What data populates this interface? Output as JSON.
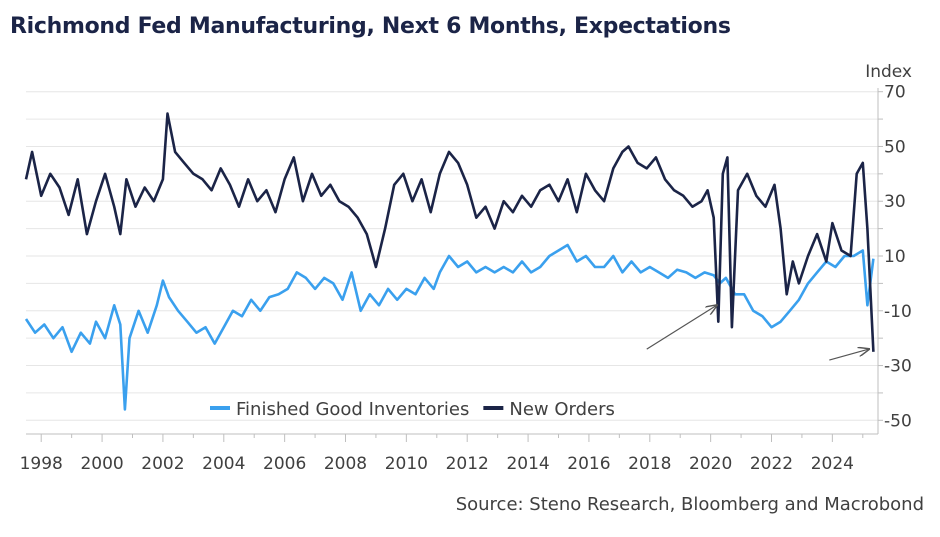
{
  "title": "Richmond Fed Manufacturing, Next 6 Months, Expectations",
  "source": "Source: Steno Research, Bloomberg and Macrobond",
  "chart_data": {
    "type": "line",
    "title": "Richmond Fed Manufacturing, Next 6 Months, Expectations",
    "ylabel": "Index",
    "ylim": [
      -55,
      75
    ],
    "yticks": [
      70,
      50,
      30,
      10,
      -10,
      -30,
      -50
    ],
    "xlim": [
      1997.5,
      2025.5
    ],
    "xticks": [
      1998,
      2000,
      2002,
      2004,
      2006,
      2008,
      2010,
      2012,
      2014,
      2016,
      2018,
      2020,
      2022,
      2024
    ],
    "legend_position": "bottom-center",
    "grid": true,
    "colors": {
      "new_orders": "#1b2447",
      "inventories": "#3aa0ee",
      "arrows": "#555555"
    },
    "series": [
      {
        "name": "Finished Good Inventories",
        "color": "#3aa0ee",
        "x": [
          1997.5,
          1997.8,
          1998.1,
          1998.4,
          1998.7,
          1999.0,
          1999.3,
          1999.6,
          1999.8,
          2000.1,
          2000.4,
          2000.6,
          2000.75,
          2000.9,
          2001.2,
          2001.5,
          2001.8,
          2002.0,
          2002.2,
          2002.5,
          2002.8,
          2003.1,
          2003.4,
          2003.7,
          2004.0,
          2004.3,
          2004.6,
          2004.9,
          2005.2,
          2005.5,
          2005.8,
          2006.1,
          2006.4,
          2006.7,
          2007.0,
          2007.3,
          2007.6,
          2007.9,
          2008.2,
          2008.5,
          2008.8,
          2009.1,
          2009.4,
          2009.7,
          2010.0,
          2010.3,
          2010.6,
          2010.9,
          2011.1,
          2011.4,
          2011.7,
          2012.0,
          2012.3,
          2012.6,
          2012.9,
          2013.2,
          2013.5,
          2013.8,
          2014.1,
          2014.4,
          2014.7,
          2015.0,
          2015.3,
          2015.6,
          2015.9,
          2016.2,
          2016.5,
          2016.8,
          2017.1,
          2017.4,
          2017.7,
          2018.0,
          2018.3,
          2018.6,
          2018.9,
          2019.2,
          2019.5,
          2019.8,
          2020.1,
          2020.3,
          2020.5,
          2020.8,
          2021.1,
          2021.4,
          2021.7,
          2022.0,
          2022.3,
          2022.6,
          2022.9,
          2023.2,
          2023.5,
          2023.8,
          2024.1,
          2024.4,
          2024.7,
          2025.0,
          2025.15,
          2025.35
        ],
        "values": [
          -13,
          -18,
          -15,
          -20,
          -16,
          -25,
          -18,
          -22,
          -14,
          -20,
          -8,
          -15,
          -46,
          -20,
          -10,
          -18,
          -8,
          1,
          -5,
          -10,
          -14,
          -18,
          -16,
          -22,
          -16,
          -10,
          -12,
          -6,
          -10,
          -5,
          -4,
          -2,
          4,
          2,
          -2,
          2,
          0,
          -6,
          4,
          -10,
          -4,
          -8,
          -2,
          -6,
          -2,
          -4,
          2,
          -2,
          4,
          10,
          6,
          8,
          4,
          6,
          4,
          6,
          4,
          8,
          4,
          6,
          10,
          12,
          14,
          8,
          10,
          6,
          6,
          10,
          4,
          8,
          4,
          6,
          4,
          2,
          5,
          4,
          2,
          4,
          3,
          0,
          2,
          -4,
          -4,
          -10,
          -12,
          -16,
          -14,
          -10,
          -6,
          0,
          4,
          8,
          6,
          10,
          10,
          12,
          -8,
          9
        ]
      },
      {
        "name": "New Orders",
        "color": "#1b2447",
        "x": [
          1997.5,
          1997.7,
          1998.0,
          1998.3,
          1998.6,
          1998.9,
          1999.2,
          1999.5,
          1999.8,
          2000.1,
          2000.4,
          2000.6,
          2000.8,
          2001.1,
          2001.4,
          2001.7,
          2002.0,
          2002.15,
          2002.4,
          2002.7,
          2003.0,
          2003.3,
          2003.6,
          2003.9,
          2004.2,
          2004.5,
          2004.8,
          2005.1,
          2005.4,
          2005.7,
          2006.0,
          2006.3,
          2006.6,
          2006.9,
          2007.2,
          2007.5,
          2007.8,
          2008.1,
          2008.4,
          2008.7,
          2008.9,
          2009.0,
          2009.3,
          2009.6,
          2009.9,
          2010.2,
          2010.5,
          2010.8,
          2011.1,
          2011.4,
          2011.7,
          2012.0,
          2012.3,
          2012.6,
          2012.9,
          2013.2,
          2013.5,
          2013.8,
          2014.1,
          2014.4,
          2014.7,
          2015.0,
          2015.3,
          2015.6,
          2015.9,
          2016.2,
          2016.5,
          2016.8,
          2017.1,
          2017.3,
          2017.6,
          2017.9,
          2018.2,
          2018.5,
          2018.8,
          2019.1,
          2019.4,
          2019.7,
          2019.9,
          2020.1,
          2020.25,
          2020.4,
          2020.55,
          2020.7,
          2020.9,
          2021.2,
          2021.5,
          2021.8,
          2022.1,
          2022.3,
          2022.5,
          2022.7,
          2022.9,
          2023.2,
          2023.5,
          2023.8,
          2024.0,
          2024.3,
          2024.6,
          2024.8,
          2025.0,
          2025.15,
          2025.35
        ],
        "values": [
          38,
          48,
          32,
          40,
          35,
          25,
          38,
          18,
          30,
          40,
          28,
          18,
          38,
          28,
          35,
          30,
          38,
          62,
          48,
          44,
          40,
          38,
          34,
          42,
          36,
          28,
          38,
          30,
          34,
          26,
          38,
          46,
          30,
          40,
          32,
          36,
          30,
          28,
          24,
          18,
          10,
          6,
          20,
          36,
          40,
          30,
          38,
          26,
          40,
          48,
          44,
          36,
          24,
          28,
          20,
          30,
          26,
          32,
          28,
          34,
          36,
          30,
          38,
          26,
          40,
          34,
          30,
          42,
          48,
          50,
          44,
          42,
          46,
          38,
          34,
          32,
          28,
          30,
          34,
          24,
          -14,
          40,
          46,
          -16,
          34,
          40,
          32,
          28,
          36,
          20,
          -4,
          8,
          0,
          10,
          18,
          8,
          22,
          12,
          10,
          40,
          44,
          20,
          -25
        ]
      }
    ],
    "annotations": [
      {
        "type": "arrow",
        "target_x": 2020.2,
        "target_y": -8,
        "from_x": 2017.9,
        "from_y": -24
      },
      {
        "type": "arrow",
        "target_x": 2025.2,
        "target_y": -24,
        "from_x": 2023.9,
        "from_y": -28
      }
    ]
  }
}
